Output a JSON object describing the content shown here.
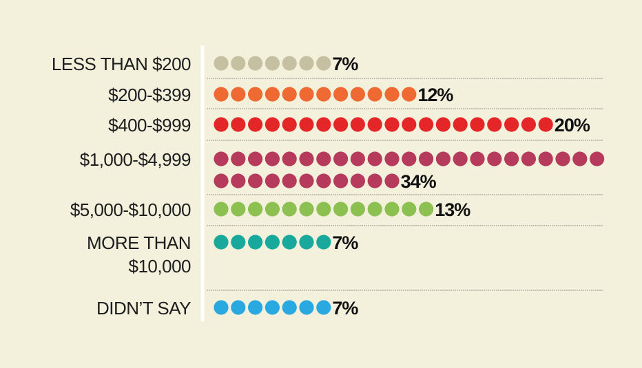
{
  "chart_data": {
    "type": "bar",
    "categories": [
      [
        "LESS THAN $200"
      ],
      [
        "$200-$399"
      ],
      [
        "$400-$999"
      ],
      [
        "$1,000-$4,999"
      ],
      [
        "$5,000-$10,000"
      ],
      [
        "MORE THAN",
        "$10,000"
      ],
      [
        "DIDN’T SAY"
      ]
    ],
    "values": [
      7,
      12,
      20,
      34,
      13,
      7,
      7
    ],
    "value_labels": [
      "7%",
      "12%",
      "20%",
      "34%",
      "13%",
      "7%",
      "7%"
    ],
    "unit": "%",
    "dot_colors": [
      "#c6c0a3",
      "#ee6a32",
      "#e52629",
      "#b53a5c",
      "#8cc152",
      "#18a99c",
      "#2aa8e0"
    ],
    "grid": false,
    "legend": "none"
  },
  "colors": {
    "background": "#f3f0dc",
    "axis_line": "#ffffff",
    "separator": "#a9a89a"
  }
}
